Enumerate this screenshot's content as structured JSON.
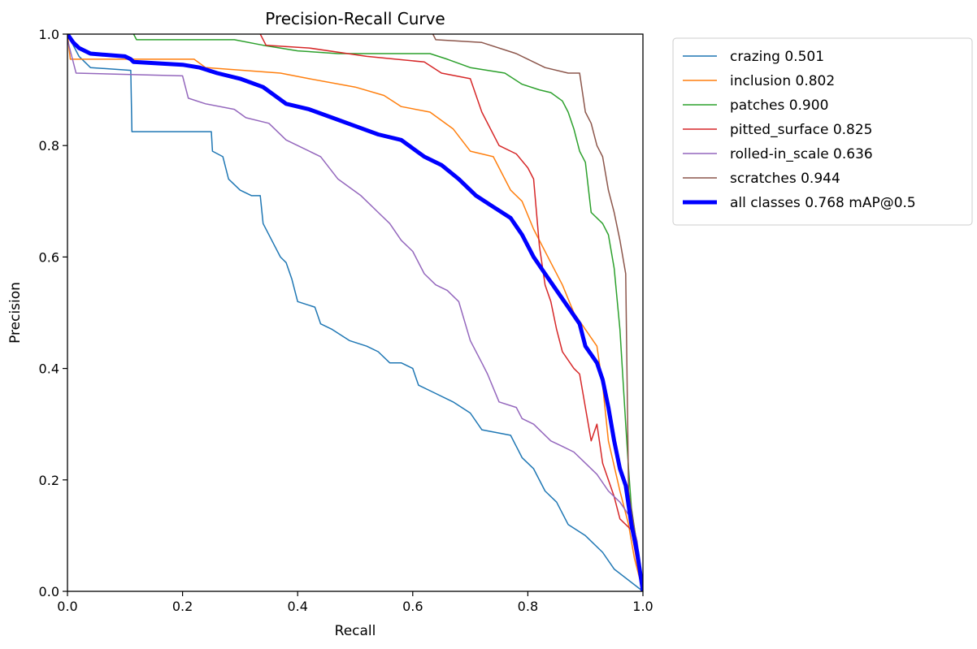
{
  "chart_data": {
    "type": "line",
    "title": "Precision-Recall Curve",
    "xlabel": "Recall",
    "ylabel": "Precision",
    "xlim": [
      0,
      1
    ],
    "ylim": [
      0,
      1
    ],
    "xticks": [
      0.0,
      0.2,
      0.4,
      0.6,
      0.8,
      1.0
    ],
    "yticks": [
      0.0,
      0.2,
      0.4,
      0.6,
      0.8,
      1.0
    ],
    "xtick_labels": [
      "0.0",
      "0.2",
      "0.4",
      "0.6",
      "0.8",
      "1.0"
    ],
    "ytick_labels": [
      "0.0",
      "0.2",
      "0.4",
      "0.6",
      "0.8",
      "1.0"
    ],
    "legend_position": "outside-top-right",
    "series": [
      {
        "name": "crazing 0.501",
        "color": "#1f77b4",
        "emphasis": false,
        "points": [
          [
            0,
            1
          ],
          [
            0.02,
            0.96
          ],
          [
            0.04,
            0.94
          ],
          [
            0.11,
            0.935
          ],
          [
            0.112,
            0.825
          ],
          [
            0.25,
            0.825
          ],
          [
            0.252,
            0.79
          ],
          [
            0.27,
            0.78
          ],
          [
            0.28,
            0.74
          ],
          [
            0.3,
            0.72
          ],
          [
            0.32,
            0.71
          ],
          [
            0.335,
            0.71
          ],
          [
            0.34,
            0.66
          ],
          [
            0.36,
            0.62
          ],
          [
            0.37,
            0.6
          ],
          [
            0.38,
            0.59
          ],
          [
            0.39,
            0.56
          ],
          [
            0.4,
            0.52
          ],
          [
            0.43,
            0.51
          ],
          [
            0.44,
            0.48
          ],
          [
            0.46,
            0.47
          ],
          [
            0.49,
            0.45
          ],
          [
            0.52,
            0.44
          ],
          [
            0.54,
            0.43
          ],
          [
            0.56,
            0.41
          ],
          [
            0.58,
            0.41
          ],
          [
            0.6,
            0.4
          ],
          [
            0.61,
            0.37
          ],
          [
            0.63,
            0.36
          ],
          [
            0.67,
            0.34
          ],
          [
            0.7,
            0.32
          ],
          [
            0.72,
            0.29
          ],
          [
            0.77,
            0.28
          ],
          [
            0.79,
            0.24
          ],
          [
            0.81,
            0.22
          ],
          [
            0.83,
            0.18
          ],
          [
            0.85,
            0.16
          ],
          [
            0.87,
            0.12
          ],
          [
            0.9,
            0.1
          ],
          [
            0.93,
            0.07
          ],
          [
            0.95,
            0.04
          ],
          [
            1.0,
            0.0
          ]
        ]
      },
      {
        "name": "inclusion 0.802",
        "color": "#ff7f0e",
        "emphasis": false,
        "points": [
          [
            0,
            1
          ],
          [
            0.005,
            0.955
          ],
          [
            0.22,
            0.955
          ],
          [
            0.24,
            0.94
          ],
          [
            0.37,
            0.93
          ],
          [
            0.42,
            0.92
          ],
          [
            0.5,
            0.905
          ],
          [
            0.55,
            0.89
          ],
          [
            0.58,
            0.87
          ],
          [
            0.63,
            0.86
          ],
          [
            0.67,
            0.83
          ],
          [
            0.7,
            0.79
          ],
          [
            0.74,
            0.78
          ],
          [
            0.77,
            0.72
          ],
          [
            0.79,
            0.7
          ],
          [
            0.81,
            0.65
          ],
          [
            0.84,
            0.59
          ],
          [
            0.86,
            0.55
          ],
          [
            0.88,
            0.5
          ],
          [
            0.9,
            0.47
          ],
          [
            0.92,
            0.44
          ],
          [
            0.93,
            0.37
          ],
          [
            0.94,
            0.27
          ],
          [
            0.96,
            0.18
          ],
          [
            0.975,
            0.12
          ],
          [
            0.985,
            0.06
          ],
          [
            1.0,
            0.0
          ]
        ]
      },
      {
        "name": "patches 0.900",
        "color": "#2ca02c",
        "emphasis": false,
        "points": [
          [
            0.115,
            1
          ],
          [
            0.12,
            0.99
          ],
          [
            0.29,
            0.99
          ],
          [
            0.34,
            0.98
          ],
          [
            0.4,
            0.97
          ],
          [
            0.47,
            0.965
          ],
          [
            0.63,
            0.965
          ],
          [
            0.66,
            0.955
          ],
          [
            0.7,
            0.94
          ],
          [
            0.76,
            0.93
          ],
          [
            0.79,
            0.91
          ],
          [
            0.82,
            0.9
          ],
          [
            0.84,
            0.895
          ],
          [
            0.86,
            0.88
          ],
          [
            0.87,
            0.86
          ],
          [
            0.88,
            0.83
          ],
          [
            0.89,
            0.79
          ],
          [
            0.9,
            0.77
          ],
          [
            0.91,
            0.68
          ],
          [
            0.93,
            0.66
          ],
          [
            0.94,
            0.64
          ],
          [
            0.95,
            0.58
          ],
          [
            0.96,
            0.47
          ],
          [
            0.97,
            0.3
          ],
          [
            0.975,
            0.22
          ],
          [
            0.98,
            0.15
          ],
          [
            0.99,
            0.08
          ],
          [
            1.0,
            0.0
          ]
        ]
      },
      {
        "name": "pitted_surface 0.825",
        "color": "#d62728",
        "emphasis": false,
        "points": [
          [
            0.335,
            1
          ],
          [
            0.345,
            0.98
          ],
          [
            0.42,
            0.975
          ],
          [
            0.52,
            0.96
          ],
          [
            0.62,
            0.95
          ],
          [
            0.65,
            0.93
          ],
          [
            0.7,
            0.92
          ],
          [
            0.72,
            0.86
          ],
          [
            0.75,
            0.8
          ],
          [
            0.78,
            0.785
          ],
          [
            0.8,
            0.76
          ],
          [
            0.81,
            0.74
          ],
          [
            0.82,
            0.62
          ],
          [
            0.83,
            0.55
          ],
          [
            0.84,
            0.52
          ],
          [
            0.85,
            0.47
          ],
          [
            0.86,
            0.43
          ],
          [
            0.88,
            0.4
          ],
          [
            0.89,
            0.39
          ],
          [
            0.9,
            0.33
          ],
          [
            0.91,
            0.27
          ],
          [
            0.92,
            0.3
          ],
          [
            0.93,
            0.23
          ],
          [
            0.95,
            0.17
          ],
          [
            0.96,
            0.13
          ],
          [
            0.98,
            0.11
          ],
          [
            0.99,
            0.05
          ],
          [
            1.0,
            0.0
          ]
        ]
      },
      {
        "name": "rolled-in_scale 0.636",
        "color": "#9467bd",
        "emphasis": false,
        "points": [
          [
            0,
            0.99
          ],
          [
            0.015,
            0.93
          ],
          [
            0.2,
            0.925
          ],
          [
            0.21,
            0.885
          ],
          [
            0.24,
            0.875
          ],
          [
            0.29,
            0.865
          ],
          [
            0.31,
            0.85
          ],
          [
            0.35,
            0.84
          ],
          [
            0.38,
            0.81
          ],
          [
            0.4,
            0.8
          ],
          [
            0.44,
            0.78
          ],
          [
            0.47,
            0.74
          ],
          [
            0.51,
            0.71
          ],
          [
            0.54,
            0.68
          ],
          [
            0.56,
            0.66
          ],
          [
            0.58,
            0.63
          ],
          [
            0.6,
            0.61
          ],
          [
            0.62,
            0.57
          ],
          [
            0.64,
            0.55
          ],
          [
            0.66,
            0.54
          ],
          [
            0.68,
            0.52
          ],
          [
            0.7,
            0.45
          ],
          [
            0.72,
            0.41
          ],
          [
            0.73,
            0.39
          ],
          [
            0.75,
            0.34
          ],
          [
            0.78,
            0.33
          ],
          [
            0.79,
            0.31
          ],
          [
            0.81,
            0.3
          ],
          [
            0.84,
            0.27
          ],
          [
            0.86,
            0.26
          ],
          [
            0.88,
            0.25
          ],
          [
            0.9,
            0.23
          ],
          [
            0.92,
            0.21
          ],
          [
            0.94,
            0.18
          ],
          [
            0.96,
            0.16
          ],
          [
            0.98,
            0.13
          ],
          [
            0.99,
            0.09
          ],
          [
            1.0,
            0.0
          ]
        ]
      },
      {
        "name": "scratches 0.944",
        "color": "#8c564b",
        "emphasis": false,
        "points": [
          [
            0.635,
            1
          ],
          [
            0.64,
            0.99
          ],
          [
            0.72,
            0.985
          ],
          [
            0.78,
            0.965
          ],
          [
            0.83,
            0.94
          ],
          [
            0.87,
            0.93
          ],
          [
            0.89,
            0.93
          ],
          [
            0.9,
            0.86
          ],
          [
            0.91,
            0.84
          ],
          [
            0.92,
            0.8
          ],
          [
            0.93,
            0.78
          ],
          [
            0.94,
            0.72
          ],
          [
            0.95,
            0.68
          ],
          [
            0.96,
            0.63
          ],
          [
            0.97,
            0.57
          ],
          [
            0.975,
            0.18
          ],
          [
            0.99,
            0.08
          ],
          [
            1.0,
            0.0
          ]
        ]
      },
      {
        "name": "all classes 0.768 mAP@0.5",
        "color": "#0000ff",
        "emphasis": true,
        "points": [
          [
            0,
            1
          ],
          [
            0.01,
            0.985
          ],
          [
            0.02,
            0.975
          ],
          [
            0.04,
            0.965
          ],
          [
            0.1,
            0.96
          ],
          [
            0.11,
            0.955
          ],
          [
            0.115,
            0.95
          ],
          [
            0.2,
            0.945
          ],
          [
            0.23,
            0.94
          ],
          [
            0.26,
            0.93
          ],
          [
            0.3,
            0.92
          ],
          [
            0.34,
            0.905
          ],
          [
            0.36,
            0.89
          ],
          [
            0.38,
            0.875
          ],
          [
            0.42,
            0.865
          ],
          [
            0.46,
            0.85
          ],
          [
            0.5,
            0.835
          ],
          [
            0.54,
            0.82
          ],
          [
            0.58,
            0.81
          ],
          [
            0.6,
            0.795
          ],
          [
            0.62,
            0.78
          ],
          [
            0.65,
            0.765
          ],
          [
            0.68,
            0.74
          ],
          [
            0.71,
            0.71
          ],
          [
            0.74,
            0.69
          ],
          [
            0.77,
            0.67
          ],
          [
            0.79,
            0.64
          ],
          [
            0.81,
            0.6
          ],
          [
            0.83,
            0.57
          ],
          [
            0.85,
            0.54
          ],
          [
            0.87,
            0.51
          ],
          [
            0.89,
            0.48
          ],
          [
            0.9,
            0.44
          ],
          [
            0.92,
            0.41
          ],
          [
            0.93,
            0.38
          ],
          [
            0.94,
            0.33
          ],
          [
            0.95,
            0.27
          ],
          [
            0.96,
            0.22
          ],
          [
            0.97,
            0.19
          ],
          [
            0.98,
            0.12
          ],
          [
            0.99,
            0.07
          ],
          [
            1.0,
            0.0
          ]
        ]
      }
    ]
  }
}
